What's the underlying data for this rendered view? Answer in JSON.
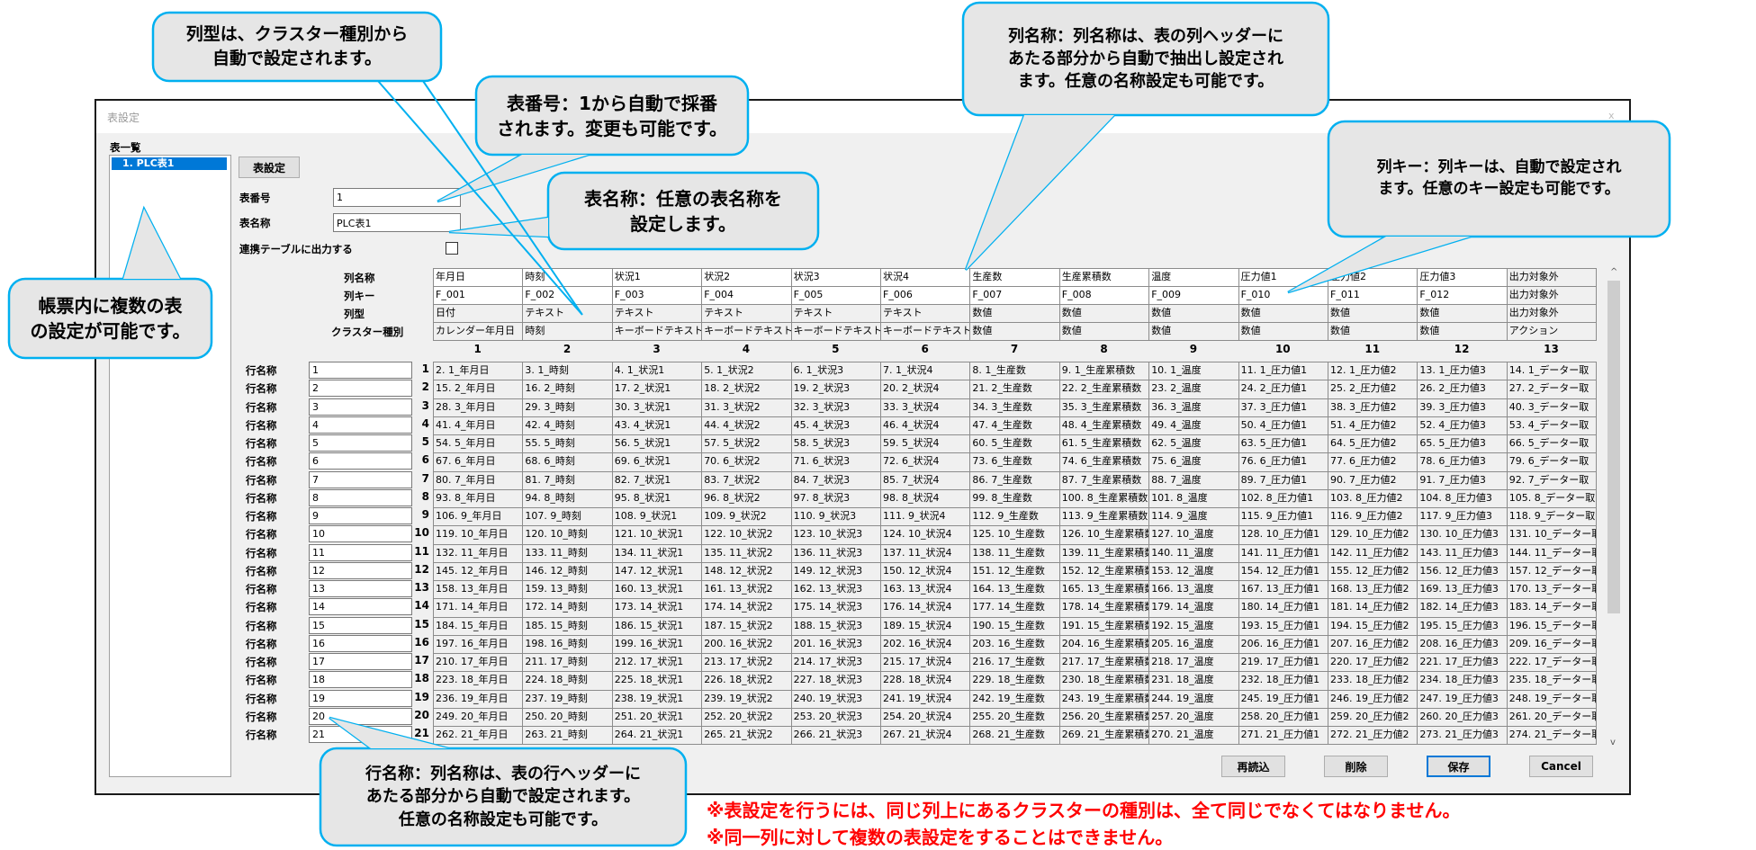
{
  "window": {
    "title": "表設定",
    "close_glyph": "x"
  },
  "list": {
    "heading": "表一覧",
    "items": [
      "1.  PLC表1"
    ]
  },
  "form": {
    "table_settings_button": "表設定",
    "table_number_label": "表番号",
    "table_number_value": "1",
    "table_name_label": "表名称",
    "table_name_value": "PLC表1",
    "link_output_label": "連携テーブルに出力する",
    "link_output_checked": false
  },
  "grid": {
    "header_labels": [
      "列名称",
      "列キー",
      "列型",
      "クラスター種別"
    ],
    "column_names": [
      "年月日",
      "時刻",
      "状況1",
      "状況2",
      "状況3",
      "状況4",
      "生産数",
      "生産累積数",
      "温度",
      "圧力値1",
      "圧力値2",
      "圧力値3",
      "出力対象外"
    ],
    "column_keys": [
      "F_001",
      "F_002",
      "F_003",
      "F_004",
      "F_005",
      "F_006",
      "F_007",
      "F_008",
      "F_009",
      "F_010",
      "F_011",
      "F_012",
      "出力対象外"
    ],
    "column_types": [
      "日付",
      "テキスト",
      "テキスト",
      "テキスト",
      "テキスト",
      "テキスト",
      "数値",
      "数値",
      "数値",
      "数値",
      "数値",
      "数値",
      "出力対象外"
    ],
    "cluster_types": [
      "カレンダー年月日",
      "時刻",
      "キーボードテキスト",
      "キーボードテキスト",
      "キーボードテキスト",
      "キーボードテキスト",
      "数値",
      "数値",
      "数値",
      "数値",
      "数値",
      "数値",
      "アクション"
    ],
    "column_numbers": [
      "1",
      "2",
      "3",
      "4",
      "5",
      "6",
      "7",
      "8",
      "9",
      "10",
      "11",
      "12",
      "13"
    ],
    "row_label": "行名称",
    "row_names": [
      "1",
      "2",
      "3",
      "4",
      "5",
      "6",
      "7",
      "8",
      "9",
      "10",
      "11",
      "12",
      "13",
      "14",
      "15",
      "16",
      "17",
      "18",
      "19",
      "20",
      "21"
    ],
    "row_numbers": [
      "1",
      "2",
      "3",
      "4",
      "5",
      "6",
      "7",
      "8",
      "9",
      "10",
      "11",
      "12",
      "13",
      "14",
      "15",
      "16",
      "17",
      "18",
      "19",
      "20",
      "21"
    ],
    "rows": [
      [
        "2. 1_年月日",
        "3. 1_時刻",
        "4. 1_状況1",
        "5. 1_状況2",
        "6. 1_状況3",
        "7. 1_状況4",
        "8. 1_生産数",
        "9. 1_生産累積数",
        "10. 1_温度",
        "11. 1_圧力値1",
        "12. 1_圧力値2",
        "13. 1_圧力値3",
        "14. 1_データー取"
      ],
      [
        "15. 2_年月日",
        "16. 2_時刻",
        "17. 2_状況1",
        "18. 2_状況2",
        "19. 2_状況3",
        "20. 2_状況4",
        "21. 2_生産数",
        "22. 2_生産累積数",
        "23. 2_温度",
        "24. 2_圧力値1",
        "25. 2_圧力値2",
        "26. 2_圧力値3",
        "27. 2_データー取"
      ],
      [
        "28. 3_年月日",
        "29. 3_時刻",
        "30. 3_状況1",
        "31. 3_状況2",
        "32. 3_状況3",
        "33. 3_状況4",
        "34. 3_生産数",
        "35. 3_生産累積数",
        "36. 3_温度",
        "37. 3_圧力値1",
        "38. 3_圧力値2",
        "39. 3_圧力値3",
        "40. 3_データー取"
      ],
      [
        "41. 4_年月日",
        "42. 4_時刻",
        "43. 4_状況1",
        "44. 4_状況2",
        "45. 4_状況3",
        "46. 4_状況4",
        "47. 4_生産数",
        "48. 4_生産累積数",
        "49. 4_温度",
        "50. 4_圧力値1",
        "51. 4_圧力値2",
        "52. 4_圧力値3",
        "53. 4_データー取"
      ],
      [
        "54. 5_年月日",
        "55. 5_時刻",
        "56. 5_状況1",
        "57. 5_状況2",
        "58. 5_状況3",
        "59. 5_状況4",
        "60. 5_生産数",
        "61. 5_生産累積数",
        "62. 5_温度",
        "63. 5_圧力値1",
        "64. 5_圧力値2",
        "65. 5_圧力値3",
        "66. 5_データー取"
      ],
      [
        "67. 6_年月日",
        "68. 6_時刻",
        "69. 6_状況1",
        "70. 6_状況2",
        "71. 6_状況3",
        "72. 6_状況4",
        "73. 6_生産数",
        "74. 6_生産累積数",
        "75. 6_温度",
        "76. 6_圧力値1",
        "77. 6_圧力値2",
        "78. 6_圧力値3",
        "79. 6_データー取"
      ],
      [
        "80. 7_年月日",
        "81. 7_時刻",
        "82. 7_状況1",
        "83. 7_状況2",
        "84. 7_状況3",
        "85. 7_状況4",
        "86. 7_生産数",
        "87. 7_生産累積数",
        "88. 7_温度",
        "89. 7_圧力値1",
        "90. 7_圧力値2",
        "91. 7_圧力値3",
        "92. 7_データー取"
      ],
      [
        "93. 8_年月日",
        "94. 8_時刻",
        "95. 8_状況1",
        "96. 8_状況2",
        "97. 8_状況3",
        "98. 8_状況4",
        "99. 8_生産数",
        "100. 8_生産累積数",
        "101. 8_温度",
        "102. 8_圧力値1",
        "103. 8_圧力値2",
        "104. 8_圧力値3",
        "105. 8_データー取"
      ],
      [
        "106. 9_年月日",
        "107. 9_時刻",
        "108. 9_状況1",
        "109. 9_状況2",
        "110. 9_状況3",
        "111. 9_状況4",
        "112. 9_生産数",
        "113. 9_生産累積数",
        "114. 9_温度",
        "115. 9_圧力値1",
        "116. 9_圧力値2",
        "117. 9_圧力値3",
        "118. 9_データー取"
      ],
      [
        "119. 10_年月日",
        "120. 10_時刻",
        "121. 10_状況1",
        "122. 10_状況2",
        "123. 10_状況3",
        "124. 10_状況4",
        "125. 10_生産数",
        "126. 10_生産累積数",
        "127. 10_温度",
        "128. 10_圧力値1",
        "129. 10_圧力値2",
        "130. 10_圧力値3",
        "131. 10_データー取"
      ],
      [
        "132. 11_年月日",
        "133. 11_時刻",
        "134. 11_状況1",
        "135. 11_状況2",
        "136. 11_状況3",
        "137. 11_状況4",
        "138. 11_生産数",
        "139. 11_生産累積数",
        "140. 11_温度",
        "141. 11_圧力値1",
        "142. 11_圧力値2",
        "143. 11_圧力値3",
        "144. 11_データー取"
      ],
      [
        "145. 12_年月日",
        "146. 12_時刻",
        "147. 12_状況1",
        "148. 12_状況2",
        "149. 12_状況3",
        "150. 12_状況4",
        "151. 12_生産数",
        "152. 12_生産累積数",
        "153. 12_温度",
        "154. 12_圧力値1",
        "155. 12_圧力値2",
        "156. 12_圧力値3",
        "157. 12_データー取"
      ],
      [
        "158. 13_年月日",
        "159. 13_時刻",
        "160. 13_状況1",
        "161. 13_状況2",
        "162. 13_状況3",
        "163. 13_状況4",
        "164. 13_生産数",
        "165. 13_生産累積数",
        "166. 13_温度",
        "167. 13_圧力値1",
        "168. 13_圧力値2",
        "169. 13_圧力値3",
        "170. 13_データー取"
      ],
      [
        "171. 14_年月日",
        "172. 14_時刻",
        "173. 14_状況1",
        "174. 14_状況2",
        "175. 14_状況3",
        "176. 14_状況4",
        "177. 14_生産数",
        "178. 14_生産累積数",
        "179. 14_温度",
        "180. 14_圧力値1",
        "181. 14_圧力値2",
        "182. 14_圧力値3",
        "183. 14_データー取"
      ],
      [
        "184. 15_年月日",
        "185. 15_時刻",
        "186. 15_状況1",
        "187. 15_状況2",
        "188. 15_状況3",
        "189. 15_状況4",
        "190. 15_生産数",
        "191. 15_生産累積数",
        "192. 15_温度",
        "193. 15_圧力値1",
        "194. 15_圧力値2",
        "195. 15_圧力値3",
        "196. 15_データー取"
      ],
      [
        "197. 16_年月日",
        "198. 16_時刻",
        "199. 16_状況1",
        "200. 16_状況2",
        "201. 16_状況3",
        "202. 16_状況4",
        "203. 16_生産数",
        "204. 16_生産累積数",
        "205. 16_温度",
        "206. 16_圧力値1",
        "207. 16_圧力値2",
        "208. 16_圧力値3",
        "209. 16_データー取"
      ],
      [
        "210. 17_年月日",
        "211. 17_時刻",
        "212. 17_状況1",
        "213. 17_状況2",
        "214. 17_状況3",
        "215. 17_状況4",
        "216. 17_生産数",
        "217. 17_生産累積数",
        "218. 17_温度",
        "219. 17_圧力値1",
        "220. 17_圧力値2",
        "221. 17_圧力値3",
        "222. 17_データー取"
      ],
      [
        "223. 18_年月日",
        "224. 18_時刻",
        "225. 18_状況1",
        "226. 18_状況2",
        "227. 18_状況3",
        "228. 18_状況4",
        "229. 18_生産数",
        "230. 18_生産累積数",
        "231. 18_温度",
        "232. 18_圧力値1",
        "233. 18_圧力値2",
        "234. 18_圧力値3",
        "235. 18_データー取"
      ],
      [
        "236. 19_年月日",
        "237. 19_時刻",
        "238. 19_状況1",
        "239. 19_状況2",
        "240. 19_状況3",
        "241. 19_状況4",
        "242. 19_生産数",
        "243. 19_生産累積数",
        "244. 19_温度",
        "245. 19_圧力値1",
        "246. 19_圧力値2",
        "247. 19_圧力値3",
        "248. 19_データー取"
      ],
      [
        "249. 20_年月日",
        "250. 20_時刻",
        "251. 20_状況1",
        "252. 20_状況2",
        "253. 20_状況3",
        "254. 20_状況4",
        "255. 20_生産数",
        "256. 20_生産累積数",
        "257. 20_温度",
        "258. 20_圧力値1",
        "259. 20_圧力値2",
        "260. 20_圧力値3",
        "261. 20_データー取"
      ],
      [
        "262. 21_年月日",
        "263. 21_時刻",
        "264. 21_状況1",
        "265. 21_状況2",
        "266. 21_状況3",
        "267. 21_状況4",
        "268. 21_生産数",
        "269. 21_生産累積数",
        "270. 21_温度",
        "271. 21_圧力値1",
        "272. 21_圧力値2",
        "273. 21_圧力値3",
        "274. 21_データー取"
      ]
    ]
  },
  "scrollbar": {
    "up_glyph": "^",
    "down_glyph": "v"
  },
  "buttons": {
    "reload": "再読込",
    "delete": "削除",
    "save": "保存",
    "cancel": "Cancel"
  },
  "notes": [
    "※表設定を行うには、同じ列上にあるクラスターの種別は、全て同じでなくてはなりません。",
    "※同一列に対して複数の表設定をすることはできません。"
  ],
  "callouts": {
    "table_number": "表番号：1から自動で採番\nされます。変更も可能です。",
    "table_name": "表名称：任意の表名称を\n設定します。",
    "column_name": "列名称：列名称は、表の列ヘッダーに\nあたる部分から自動で抽出し設定され\nます。任意の名称設定も可能です。",
    "column_key": "列キー：列キーは、自動で設定され\nます。任意のキー設定も可能です。",
    "multiple_tables": "帳票内に複数の表\nの設定が可能です。",
    "column_type": "列型は、クラスター種別から\n自動で設定されます。",
    "row_name": "行名称：列名称は、表の行ヘッダーに\nあたる部分から自動で設定されます。\n任意の名称設定も可能です。"
  },
  "colors": {
    "callout_fill": "#e6e6e6",
    "callout_border": "#00b0f0",
    "note_text": "#ff0000",
    "selection": "#0078d7",
    "save_border": "#0078d7"
  }
}
